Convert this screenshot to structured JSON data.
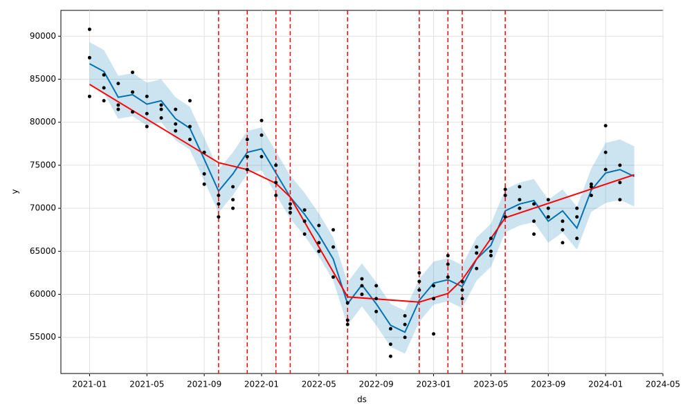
{
  "chart_data": {
    "type": "forecast",
    "xlabel": "ds",
    "ylabel": "y",
    "xlim": [
      "2020-11",
      "2024-05"
    ],
    "ylim": [
      50800,
      93000
    ],
    "xticks": [
      "2021-01",
      "2021-05",
      "2021-09",
      "2022-01",
      "2022-05",
      "2022-09",
      "2023-01",
      "2023-05",
      "2023-09",
      "2024-01",
      "2024-05"
    ],
    "yticks": [
      55000,
      60000,
      65000,
      70000,
      75000,
      80000,
      85000,
      90000
    ],
    "grid": true,
    "observed": {
      "color": "#000000",
      "x": [
        "2021-01",
        "2021-01",
        "2021-01",
        "2021-02",
        "2021-02",
        "2021-02",
        "2021-03",
        "2021-03",
        "2021-03",
        "2021-04",
        "2021-04",
        "2021-04",
        "2021-05",
        "2021-05",
        "2021-05",
        "2021-06",
        "2021-06",
        "2021-06",
        "2021-07",
        "2021-07",
        "2021-07",
        "2021-08",
        "2021-08",
        "2021-08",
        "2021-09",
        "2021-09",
        "2021-09",
        "2021-10",
        "2021-10",
        "2021-10",
        "2021-11",
        "2021-11",
        "2021-11",
        "2021-12",
        "2021-12",
        "2021-12",
        "2022-01",
        "2022-01",
        "2022-01",
        "2022-02",
        "2022-02",
        "2022-02",
        "2022-03",
        "2022-03",
        "2022-03",
        "2022-04",
        "2022-04",
        "2022-04",
        "2022-05",
        "2022-05",
        "2022-05",
        "2022-06",
        "2022-06",
        "2022-06",
        "2022-07",
        "2022-07",
        "2022-07",
        "2022-08",
        "2022-08",
        "2022-08",
        "2022-09",
        "2022-09",
        "2022-09",
        "2022-10",
        "2022-10",
        "2022-10",
        "2022-11",
        "2022-11",
        "2022-11",
        "2022-12",
        "2022-12",
        "2022-12",
        "2023-01",
        "2023-01",
        "2023-01",
        "2023-02",
        "2023-02",
        "2023-02",
        "2023-03",
        "2023-03",
        "2023-03",
        "2023-04",
        "2023-04",
        "2023-04",
        "2023-05",
        "2023-05",
        "2023-05",
        "2023-06",
        "2023-06",
        "2023-06",
        "2023-07",
        "2023-07",
        "2023-07",
        "2023-08",
        "2023-08",
        "2023-08",
        "2023-09",
        "2023-09",
        "2023-09",
        "2023-10",
        "2023-10",
        "2023-10",
        "2023-11",
        "2023-11",
        "2023-11",
        "2023-12",
        "2023-12",
        "2023-12",
        "2024-01",
        "2024-01",
        "2024-01",
        "2024-02",
        "2024-02",
        "2024-02"
      ],
      "values": [
        90800,
        83000,
        87500,
        85500,
        82500,
        84000,
        81500,
        84500,
        82000,
        85800,
        81200,
        83500,
        83000,
        79500,
        81000,
        82000,
        80500,
        81500,
        79000,
        81500,
        79800,
        82500,
        78000,
        79500,
        74000,
        76500,
        72800,
        70500,
        69000,
        71500,
        70000,
        72500,
        71000,
        76000,
        78000,
        74500,
        80200,
        78500,
        76000,
        73000,
        75000,
        71500,
        70500,
        69500,
        70000,
        68500,
        67000,
        69800,
        66000,
        68000,
        65000,
        67500,
        65500,
        62000,
        57000,
        59000,
        56500,
        61800,
        60000,
        61000,
        59500,
        58000,
        61000,
        54200,
        52800,
        56000,
        56500,
        57500,
        55000,
        62500,
        60500,
        61500,
        59500,
        55400,
        61000,
        63500,
        64500,
        62000,
        60500,
        59500,
        61500,
        63000,
        64800,
        65500,
        65000,
        64500,
        66500,
        69000,
        71500,
        72200,
        71000,
        72500,
        70000,
        68500,
        70500,
        67000,
        69000,
        71000,
        70000,
        67500,
        66000,
        68500,
        70000,
        66500,
        69000,
        72500,
        71500,
        72800,
        79600,
        76500,
        74500,
        71000,
        73000,
        75000
      ]
    },
    "forecast": {
      "color": "#0072B2",
      "band_color": "#0072B2",
      "x": [
        "2021-01",
        "2021-02",
        "2021-03",
        "2021-04",
        "2021-05",
        "2021-06",
        "2021-07",
        "2021-08",
        "2021-09",
        "2021-10",
        "2021-11",
        "2021-12",
        "2022-01",
        "2022-02",
        "2022-03",
        "2022-04",
        "2022-05",
        "2022-06",
        "2022-07",
        "2022-08",
        "2022-09",
        "2022-10",
        "2022-11",
        "2022-12",
        "2023-01",
        "2023-02",
        "2023-03",
        "2023-04",
        "2023-05",
        "2023-06",
        "2023-07",
        "2023-08",
        "2023-09",
        "2023-10",
        "2023-11",
        "2023-12",
        "2024-01",
        "2024-02",
        "2024-03"
      ],
      "values": [
        86800,
        85900,
        82900,
        83200,
        82100,
        82500,
        80400,
        79300,
        75700,
        72000,
        74000,
        76500,
        76900,
        74100,
        71300,
        69300,
        66900,
        64100,
        58900,
        61100,
        58900,
        56400,
        55600,
        59300,
        61300,
        61700,
        60900,
        64100,
        65700,
        69700,
        70500,
        70900,
        68500,
        69700,
        67700,
        72100,
        74100,
        74500,
        73700
      ],
      "lower": [
        84300,
        83400,
        80400,
        80700,
        79600,
        80000,
        77900,
        76800,
        73200,
        69500,
        71500,
        74000,
        74400,
        71600,
        68800,
        66800,
        64400,
        61600,
        56400,
        58600,
        56400,
        53900,
        53100,
        56800,
        58800,
        59200,
        58400,
        61600,
        63200,
        67200,
        68000,
        68400,
        66000,
        67200,
        65200,
        69600,
        70600,
        71000,
        70200
      ],
      "upper": [
        89300,
        88400,
        85400,
        85700,
        84600,
        85000,
        82900,
        81800,
        78200,
        74500,
        76500,
        79000,
        79400,
        76600,
        73800,
        71800,
        69400,
        66600,
        61400,
        63600,
        61400,
        58900,
        58100,
        61800,
        63800,
        64200,
        63400,
        66600,
        68200,
        72200,
        73000,
        73400,
        71000,
        72200,
        70200,
        74600,
        77600,
        78000,
        77200
      ]
    },
    "trend": {
      "color": "#ff0000",
      "x": [
        "2021-01",
        "2021-10",
        "2021-12",
        "2022-02",
        "2022-03",
        "2022-07",
        "2022-12",
        "2023-02",
        "2023-03",
        "2023-06",
        "2024-03"
      ],
      "values": [
        84400,
        75300,
        74500,
        72900,
        71300,
        59700,
        59100,
        60100,
        61700,
        68900,
        73900
      ]
    },
    "changepoints": {
      "color": "#ff0000",
      "x": [
        "2021-10",
        "2021-12",
        "2022-02",
        "2022-03",
        "2022-07",
        "2022-12",
        "2023-02",
        "2023-03",
        "2023-06"
      ]
    }
  }
}
